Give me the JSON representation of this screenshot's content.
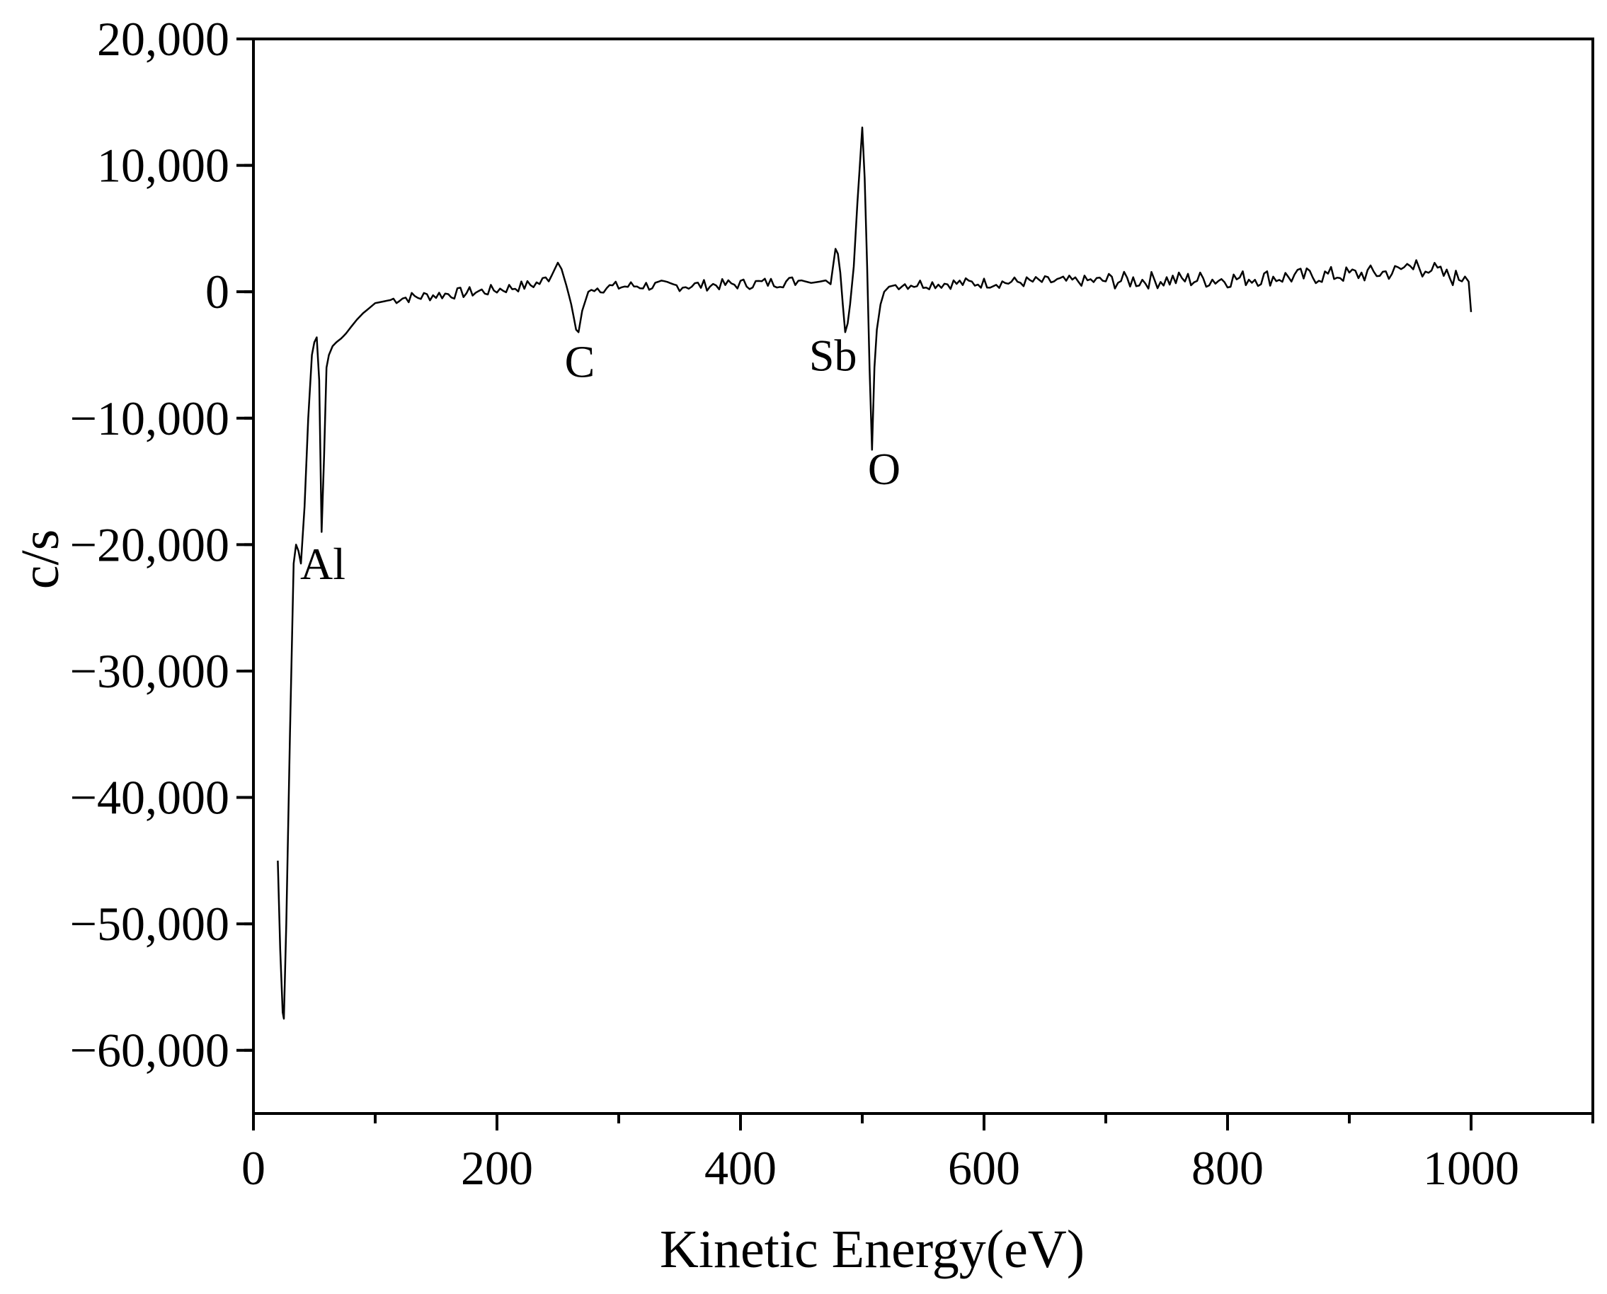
{
  "chart_data": {
    "type": "line",
    "title": "",
    "xlabel": "Kinetic Energy(eV)",
    "ylabel": "c/s",
    "xlim": [
      0,
      1100
    ],
    "ylim": [
      -65000,
      20000
    ],
    "x_major_ticks": [
      0,
      200,
      400,
      600,
      800,
      1000
    ],
    "x_minor_ticks": [
      100,
      300,
      500,
      700,
      900,
      1100
    ],
    "y_major_ticks": [
      20000,
      10000,
      0,
      -10000,
      -20000,
      -30000,
      -40000,
      -50000,
      -60000
    ],
    "x_tick_labels": [
      "0",
      "200",
      "400",
      "600",
      "800",
      "1000"
    ],
    "y_tick_labels": [
      "20,000",
      "10,000",
      "0",
      "−10,000",
      "−20,000",
      "−30,000",
      "−40,000",
      "−50,000",
      "−60,000"
    ],
    "grid": false,
    "legend": "none",
    "line_color": "#000000",
    "series": [
      {
        "points": [
          [
            20,
            -45000
          ],
          [
            22,
            -52000
          ],
          [
            24,
            -57000
          ],
          [
            25,
            -57500
          ],
          [
            27,
            -50000
          ],
          [
            30,
            -35000
          ],
          [
            33,
            -21500
          ],
          [
            35,
            -20000
          ],
          [
            37,
            -20500
          ],
          [
            39,
            -21500
          ],
          [
            42,
            -17000
          ],
          [
            45,
            -10000
          ],
          [
            48,
            -5000
          ],
          [
            50,
            -4000
          ],
          [
            52,
            -3600
          ],
          [
            54,
            -7000
          ],
          [
            56,
            -19000
          ],
          [
            58,
            -13000
          ],
          [
            60,
            -6000
          ],
          [
            62,
            -5000
          ],
          [
            65,
            -4300
          ],
          [
            68,
            -4000
          ],
          [
            72,
            -3700
          ],
          [
            76,
            -3300
          ],
          [
            80,
            -2800
          ],
          [
            85,
            -2200
          ],
          [
            90,
            -1700
          ],
          [
            95,
            -1300
          ],
          [
            100,
            -900
          ],
          [
            110,
            -700
          ],
          [
            120,
            -500
          ],
          [
            135,
            -400
          ],
          [
            150,
            -250
          ],
          [
            170,
            -100
          ],
          [
            190,
            50
          ],
          [
            210,
            300
          ],
          [
            225,
            500
          ],
          [
            235,
            700
          ],
          [
            245,
            1300
          ],
          [
            250,
            2300
          ],
          [
            253,
            1800
          ],
          [
            257,
            500
          ],
          [
            261,
            -1000
          ],
          [
            265,
            -3000
          ],
          [
            267,
            -3200
          ],
          [
            270,
            -1500
          ],
          [
            275,
            0
          ],
          [
            280,
            300
          ],
          [
            300,
            400
          ],
          [
            320,
            500
          ],
          [
            340,
            450
          ],
          [
            360,
            500
          ],
          [
            380,
            550
          ],
          [
            400,
            600
          ],
          [
            420,
            700
          ],
          [
            440,
            800
          ],
          [
            450,
            900
          ],
          [
            458,
            700
          ],
          [
            465,
            800
          ],
          [
            470,
            900
          ],
          [
            474,
            600
          ],
          [
            476,
            2000
          ],
          [
            478,
            3400
          ],
          [
            480,
            3000
          ],
          [
            482,
            1500
          ],
          [
            484,
            -1000
          ],
          [
            486,
            -3200
          ],
          [
            488,
            -2500
          ],
          [
            490,
            -1000
          ],
          [
            493,
            2000
          ],
          [
            496,
            7000
          ],
          [
            498,
            10000
          ],
          [
            500,
            13000
          ],
          [
            502,
            9000
          ],
          [
            504,
            2000
          ],
          [
            506,
            -6000
          ],
          [
            508,
            -12500
          ],
          [
            510,
            -6000
          ],
          [
            512,
            -3000
          ],
          [
            515,
            -1000
          ],
          [
            518,
            0
          ],
          [
            522,
            400
          ],
          [
            530,
            600
          ],
          [
            560,
            650
          ],
          [
            600,
            700
          ],
          [
            640,
            800
          ],
          [
            680,
            850
          ],
          [
            720,
            900
          ],
          [
            760,
            950
          ],
          [
            800,
            1000
          ],
          [
            820,
            1100
          ],
          [
            840,
            1150
          ],
          [
            860,
            1200
          ],
          [
            880,
            1300
          ],
          [
            900,
            1350
          ],
          [
            920,
            1450
          ],
          [
            940,
            1600
          ],
          [
            955,
            2500
          ],
          [
            960,
            1200
          ],
          [
            965,
            2000
          ],
          [
            975,
            1400
          ],
          [
            985,
            1100
          ],
          [
            995,
            1200
          ],
          [
            998,
            800
          ],
          [
            1000,
            -1600
          ]
        ]
      }
    ],
    "annotations": [
      {
        "text": "Al",
        "x": 57,
        "y": -21500
      },
      {
        "text": "C",
        "x": 268,
        "y": -5500
      },
      {
        "text": "Sb",
        "x": 476,
        "y": -5000
      },
      {
        "text": "O",
        "x": 518,
        "y": -14000
      }
    ]
  }
}
